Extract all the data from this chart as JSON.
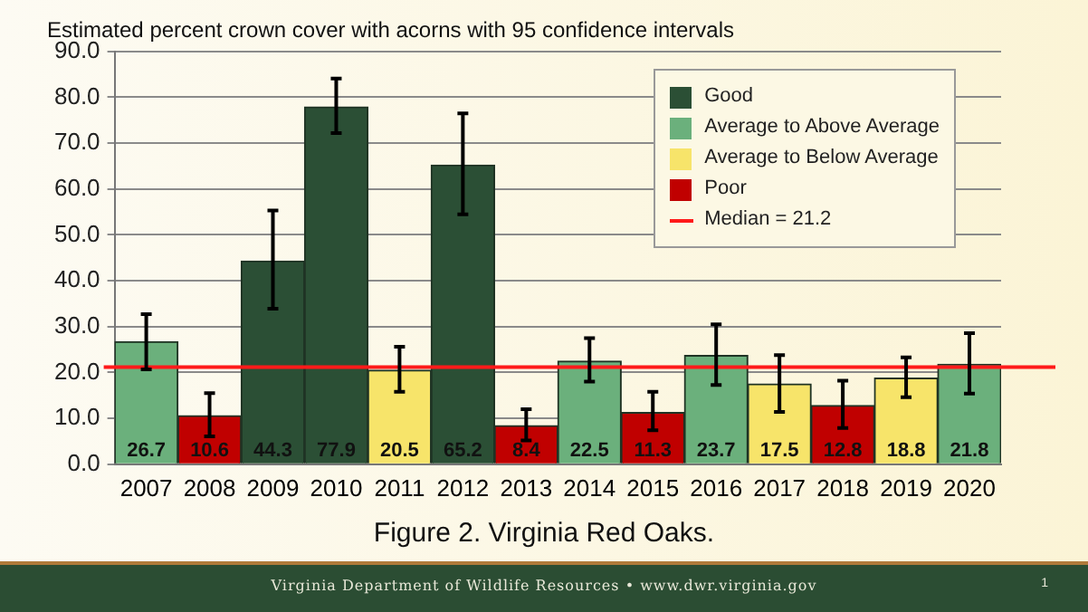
{
  "chart_data": {
    "type": "bar",
    "title": "Estimated percent crown cover with acorns with 95 confidence intervals",
    "categories": [
      "2007",
      "2008",
      "2009",
      "2010",
      "2011",
      "2012",
      "2013",
      "2014",
      "2015",
      "2016",
      "2017",
      "2018",
      "2019",
      "2020"
    ],
    "series": [
      {
        "name": "Good",
        "color": "#2b4f35",
        "values": [
          null,
          null,
          44.3,
          77.9,
          null,
          65.2,
          null,
          null,
          null,
          null,
          null,
          null,
          null,
          null
        ],
        "errors": [
          null,
          null,
          [
            33.9,
            55.3
          ],
          [
            72.2,
            84.1
          ],
          null,
          [
            54.5,
            76.5
          ],
          null,
          null,
          null,
          null,
          null,
          null,
          null,
          null
        ]
      },
      {
        "name": "Average to Above Average",
        "color": "#6bb07c",
        "values": [
          26.7,
          null,
          null,
          null,
          null,
          null,
          null,
          22.5,
          null,
          23.7,
          null,
          null,
          null,
          21.8
        ],
        "errors": [
          [
            20.7,
            32.7
          ],
          null,
          null,
          null,
          null,
          null,
          null,
          [
            18.0,
            27.5
          ],
          null,
          [
            17.3,
            30.5
          ],
          null,
          null,
          null,
          [
            15.4,
            28.6
          ]
        ]
      },
      {
        "name": "Average to Below Average",
        "color": "#f7e46a",
        "values": [
          null,
          null,
          null,
          null,
          20.5,
          null,
          null,
          null,
          null,
          null,
          17.5,
          null,
          18.8,
          null
        ],
        "errors": [
          null,
          null,
          null,
          null,
          [
            15.8,
            25.6
          ],
          null,
          null,
          null,
          null,
          null,
          [
            11.4,
            23.8
          ],
          null,
          [
            14.6,
            23.3
          ],
          null
        ]
      },
      {
        "name": "Poor",
        "color": "#c00000",
        "values": [
          null,
          10.6,
          null,
          null,
          null,
          null,
          8.4,
          null,
          11.3,
          null,
          null,
          12.8,
          null,
          null
        ],
        "errors": [
          null,
          [
            6.1,
            15.5
          ],
          null,
          null,
          null,
          null,
          [
            5.2,
            12.0
          ],
          null,
          [
            7.4,
            15.8
          ],
          null,
          null,
          [
            7.9,
            18.2
          ],
          null,
          null
        ]
      }
    ],
    "ylim": [
      0,
      90
    ],
    "yticks": [
      {
        "value": 0,
        "label": "0.0"
      },
      {
        "value": 10,
        "label": "10.0"
      },
      {
        "value": 20,
        "label": "20.0"
      },
      {
        "value": 30,
        "label": "30.0"
      },
      {
        "value": 40,
        "label": "40.0"
      },
      {
        "value": 50,
        "label": "50.0"
      },
      {
        "value": 60,
        "label": "60.0"
      },
      {
        "value": 70,
        "label": "70.0"
      },
      {
        "value": 80,
        "label": "80.0"
      },
      {
        "value": 90,
        "label": "90.0"
      }
    ],
    "grid": "y",
    "legend": "top right",
    "data_labels": true,
    "ref_lines": [
      {
        "axis": "y",
        "value": 21.2,
        "label": "Median = 21.2",
        "color": "#ff1a1a"
      }
    ],
    "annotations": [
      "Figure 2.  Virginia Red Oaks.",
      "Virginia Department of Wildlife Resources  •  www.dwr.virginia.gov",
      "1"
    ]
  }
}
